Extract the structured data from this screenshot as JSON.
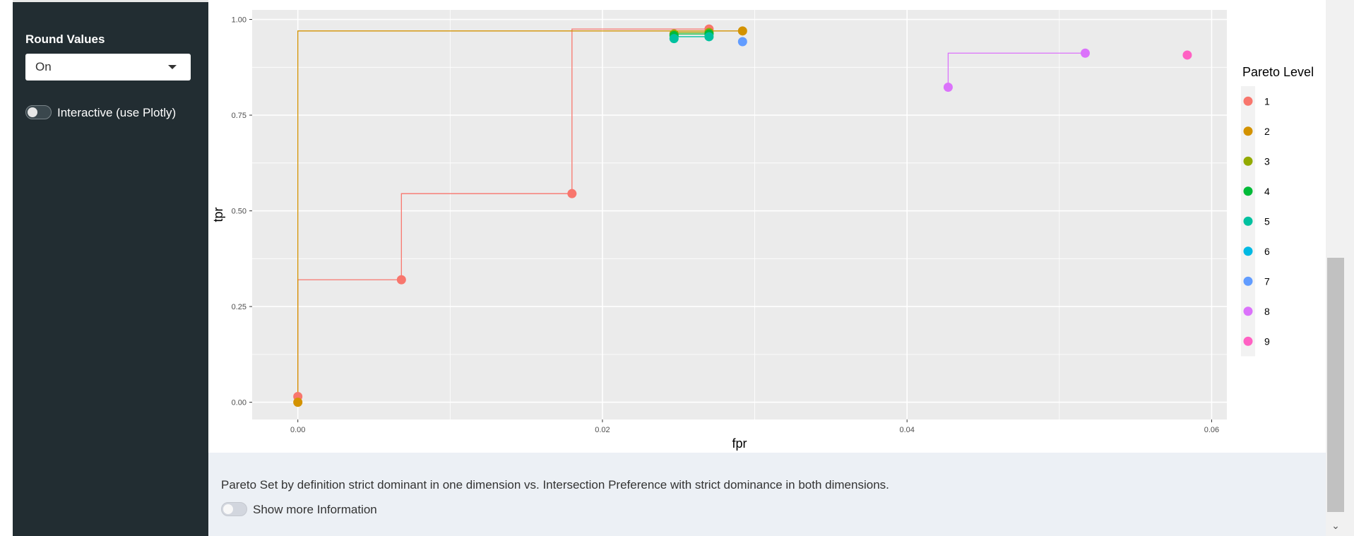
{
  "sidebar": {
    "round_values_label": "Round Values",
    "round_values_selected": "On",
    "interactive_toggle_label": "Interactive (use Plotly)",
    "interactive_toggle_on": false
  },
  "info": {
    "description": "Pareto Set by definition strict dominant in one dimension vs. Intersection Preference with strict dominance in both dimensions.",
    "show_more_label": "Show more Information",
    "show_more_on": false
  },
  "chart_data": {
    "type": "scatter",
    "xlabel": "fpr",
    "ylabel": "tpr",
    "xlim": [
      -0.003,
      0.061
    ],
    "ylim": [
      -0.045,
      1.025
    ],
    "x_ticks": [
      0.0,
      0.02,
      0.04,
      0.06
    ],
    "x_tick_labels": [
      "0.00",
      "0.02",
      "0.04",
      "0.06"
    ],
    "y_ticks": [
      0.0,
      0.25,
      0.5,
      0.75,
      1.0
    ],
    "y_tick_labels": [
      "0.00",
      "0.25",
      "0.50",
      "0.75",
      "1.00"
    ],
    "grid": true,
    "legend_title": "Pareto Level",
    "legend_position": "right",
    "series": [
      {
        "name": "1",
        "color": "#F8766D",
        "step_line": true,
        "points": [
          [
            0.0,
            0.015
          ],
          [
            0.0068,
            0.32
          ],
          [
            0.018,
            0.545
          ],
          [
            0.027,
            0.975
          ]
        ]
      },
      {
        "name": "2",
        "color": "#D39200",
        "step_line": true,
        "points": [
          [
            0.0,
            0.0
          ],
          [
            0.0292,
            0.97
          ]
        ]
      },
      {
        "name": "3",
        "color": "#93AA00",
        "step_line": true,
        "points": [
          [
            0.0247,
            0.962
          ],
          [
            0.027,
            0.966
          ]
        ]
      },
      {
        "name": "4",
        "color": "#00BA38",
        "step_line": true,
        "points": [
          [
            0.0247,
            0.958
          ],
          [
            0.027,
            0.962
          ]
        ]
      },
      {
        "name": "5",
        "color": "#00C19F",
        "step_line": true,
        "points": [
          [
            0.0247,
            0.95
          ],
          [
            0.027,
            0.955
          ]
        ]
      },
      {
        "name": "6",
        "color": "#00B9E3",
        "step_line": false,
        "points": []
      },
      {
        "name": "7",
        "color": "#619CFF",
        "step_line": false,
        "points": [
          [
            0.0292,
            0.942
          ]
        ]
      },
      {
        "name": "8",
        "color": "#DB72FB",
        "step_line": true,
        "points": [
          [
            0.0427,
            0.823
          ],
          [
            0.0517,
            0.912
          ]
        ]
      },
      {
        "name": "9",
        "color": "#FF61C3",
        "step_line": false,
        "points": [
          [
            0.0584,
            0.907
          ]
        ]
      }
    ]
  }
}
